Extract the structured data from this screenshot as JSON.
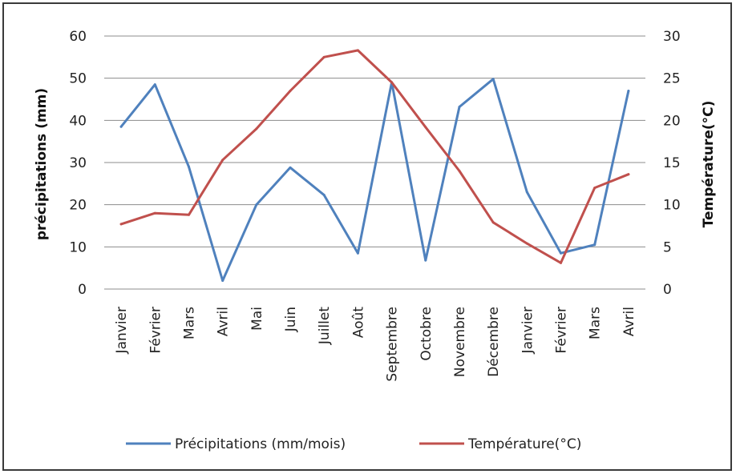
{
  "chart_data": {
    "type": "line",
    "title": "",
    "categories": [
      "Janvier",
      "Février",
      "Mars",
      "Avril",
      "Mai",
      "Juin",
      "Juillet",
      "Août",
      "Septembre",
      "Octobre",
      "Novembre",
      "Décembre",
      "Janvier",
      "Février",
      "Mars",
      "Avril"
    ],
    "y_left": {
      "label": "précipitations  (mm)",
      "ylim": [
        0,
        60
      ],
      "ticks": [
        "0",
        "10",
        "20",
        "30",
        "40",
        "50",
        "60"
      ]
    },
    "y_right": {
      "label": "Température(°C)",
      "ylim": [
        0,
        30
      ],
      "ticks": [
        "0",
        "5",
        "10",
        "15",
        "20",
        "25",
        "30"
      ]
    },
    "grid": true,
    "legend_position": "bottom",
    "series": [
      {
        "name": "Précipitations (mm/mois)",
        "axis": "left",
        "color": "#4f81bd",
        "values": [
          38.5,
          48.5,
          29,
          2,
          20,
          28.8,
          22.3,
          8.5,
          49,
          6.8,
          43.2,
          49.8,
          23,
          8.5,
          10.5,
          47
        ]
      },
      {
        "name": "Température(°C)",
        "axis": "right",
        "color": "#c0504d",
        "values": [
          7.7,
          9,
          8.8,
          15.3,
          19,
          23.5,
          27.5,
          28.3,
          24.5,
          19.2,
          14,
          7.9,
          5.4,
          3.1,
          12,
          13.6
        ]
      }
    ]
  }
}
